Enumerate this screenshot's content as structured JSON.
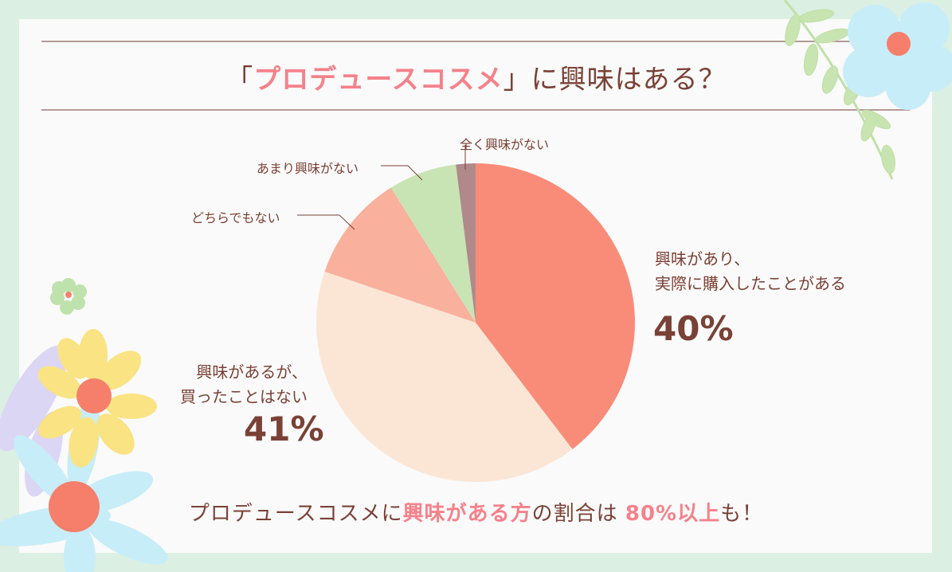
{
  "title": {
    "open_bracket": "「",
    "highlight": "プロデュースコスメ",
    "close_bracket": "」",
    "rest": "に興味はある？"
  },
  "footer": {
    "part1": "プロデュースコスメに",
    "highlight1": "興味がある方",
    "part2": "の割合は ",
    "highlight2": "80%以上",
    "part3": "も！"
  },
  "colors": {
    "text": "#7A4136",
    "accent_pink": "#F5818A",
    "background": "#DCEFE3",
    "card": "#FAFAFA",
    "rule": "#B59A95"
  },
  "labels": {
    "bought": {
      "line1": "興味があり、",
      "line2": "実際に購入したことがある",
      "pct": "40%"
    },
    "not_bought": {
      "line1": "興味があるが、",
      "line2": "買ったことはない",
      "pct": "41%"
    },
    "neutral": "どちらでもない",
    "little": "あまり興味がない",
    "none": "全く興味がない"
  },
  "chart_data": {
    "type": "pie",
    "title": "「プロデュースコスメ」に興味はある？",
    "start_angle": "12 o'clock, clockwise",
    "categories": [
      "興味があり、実際に購入したことがある",
      "興味があるが、買ったことはない",
      "どちらでもない",
      "あまり興味がない",
      "全く興味がない"
    ],
    "values": [
      40,
      41,
      11,
      7,
      2
    ],
    "value_labels": [
      "40%",
      "41%",
      "",
      "",
      ""
    ],
    "colors": [
      "#F98C78",
      "#FBE6D6",
      "#F9B09C",
      "#C8E4B4",
      "#B08A8A"
    ],
    "annotation": "プロデュースコスメに興味がある方の割合は 80%以上も！"
  }
}
